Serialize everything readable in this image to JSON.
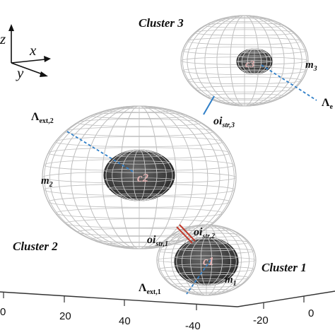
{
  "axes3d": {
    "z": "z",
    "x": "x",
    "y": "y"
  },
  "cluster_labels": {
    "c1": "Cluster 1",
    "c2": "Cluster 2",
    "c3": "Cluster 3"
  },
  "centers": {
    "c1": "c1",
    "c2": "c2",
    "c3": "c3"
  },
  "masses": {
    "m1": "m",
    "m1_sub": "1",
    "m2": "m",
    "m2_sub": "2",
    "m3": "m",
    "m3_sub": "3"
  },
  "lambda": {
    "symbol": "Λ",
    "ext1_sub": "ext,1",
    "ext2_sub": "ext,2",
    "ext3_sub": "e"
  },
  "oi": {
    "base": "oi",
    "str1_sub": "str,1",
    "str2_sub": "str,2",
    "str3_sub": "str,3"
  },
  "ticks": [
    "0",
    "20",
    "40",
    "-40",
    "-20",
    "0"
  ],
  "colors": {
    "core": "#3c3c3c",
    "wire": "#bdbdbd",
    "link_blue": "#2f7fc8",
    "link_red": "#c0392b"
  }
}
